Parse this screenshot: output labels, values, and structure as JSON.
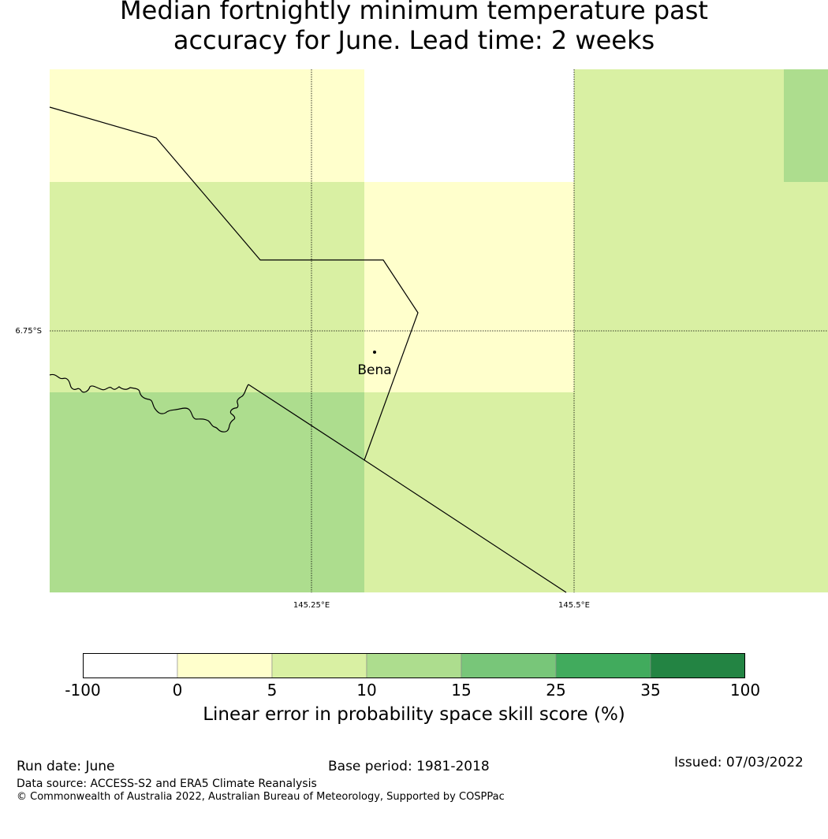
{
  "title": {
    "line1": "Median fortnightly minimum temperature past",
    "line2": "accuracy for June. Lead time: 2 weeks"
  },
  "map": {
    "place_label": "Bena",
    "lat_labels": [
      "6.75°S"
    ],
    "lon_labels": [
      "145.25°E",
      "145.5°E"
    ],
    "cells": [
      {
        "row": 0,
        "col": 0,
        "value": 2
      },
      {
        "row": 0,
        "col": 1,
        "value": null
      },
      {
        "row": 0,
        "col": 2,
        "value": 7
      },
      {
        "row": 0,
        "col": 3,
        "value": 12
      },
      {
        "row": 1,
        "col": 0,
        "value": 7
      },
      {
        "row": 1,
        "col": 1,
        "value": 2
      },
      {
        "row": 1,
        "col": 2,
        "value": 7
      },
      {
        "row": 1,
        "col": 3,
        "value": 7
      },
      {
        "row": 2,
        "col": 0,
        "value": 12
      },
      {
        "row": 2,
        "col": 1,
        "value": 7
      },
      {
        "row": 2,
        "col": 2,
        "value": 7
      },
      {
        "row": 2,
        "col": 3,
        "value": 7
      }
    ]
  },
  "colorbar": {
    "ticks": [
      "-100",
      "0",
      "5",
      "10",
      "15",
      "25",
      "35",
      "100"
    ],
    "colors": [
      "#ffffff",
      "#ffffcc",
      "#d9f0a3",
      "#addd8e",
      "#78c679",
      "#41ab5d",
      "#238443"
    ],
    "label": "Linear error in probability space skill score (%)"
  },
  "footer": {
    "run_date": "Run date: June",
    "base_period": "Base period: 1981-2018",
    "issued": "Issued: 07/03/2022",
    "data_source": "Data source: ACCESS-S2 and ERA5 Climate Reanalysis",
    "copyright": "© Commonwealth of Australia 2022, Australian Bureau of Meteorology, Supported by COSPPac"
  }
}
